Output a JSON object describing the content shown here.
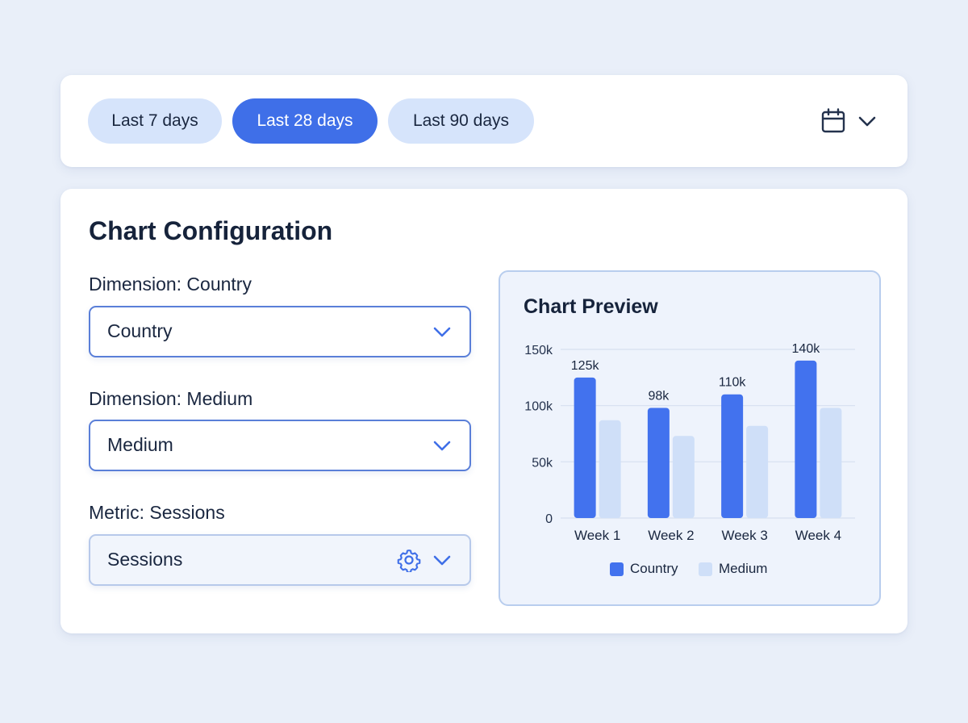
{
  "date_range": {
    "options": [
      {
        "label": "Last 7 days",
        "active": false
      },
      {
        "label": "Last 28 days",
        "active": true
      },
      {
        "label": "Last 90 days",
        "active": false
      }
    ]
  },
  "config": {
    "title": "Chart Configuration",
    "fields": [
      {
        "label": "Dimension: Country",
        "value": "Country",
        "style": "default"
      },
      {
        "label": "Dimension: Medium",
        "value": "Medium",
        "style": "default"
      },
      {
        "label": "Metric: Sessions",
        "value": "Sessions",
        "style": "metric"
      }
    ]
  },
  "preview": {
    "title": "Chart Preview"
  },
  "colors": {
    "accent": "#3f6fe8",
    "accent_light": "#d6e4fb",
    "series_country": "#4272ee",
    "series_medium": "#cfdff8"
  },
  "icons": {
    "date_picker": "calendar-icon",
    "dropdown": "chevron-down-icon",
    "settings": "gear-icon"
  },
  "chart_data": {
    "type": "bar",
    "categories": [
      "Week 1",
      "Week 2",
      "Week 3",
      "Week 4"
    ],
    "series": [
      {
        "name": "Country",
        "values": [
          125000,
          98000,
          110000,
          140000
        ],
        "labels": [
          "125k",
          "98k",
          "110k",
          "140k"
        ]
      },
      {
        "name": "Medium",
        "values": [
          87000,
          73000,
          82000,
          98000
        ]
      }
    ],
    "y_ticks": [
      {
        "value": 0,
        "label": "0"
      },
      {
        "value": 50000,
        "label": "50k"
      },
      {
        "value": 100000,
        "label": "100k"
      },
      {
        "value": 150000,
        "label": "150k"
      }
    ],
    "ylim": [
      0,
      150000
    ],
    "grid": true,
    "legend_position": "bottom"
  }
}
